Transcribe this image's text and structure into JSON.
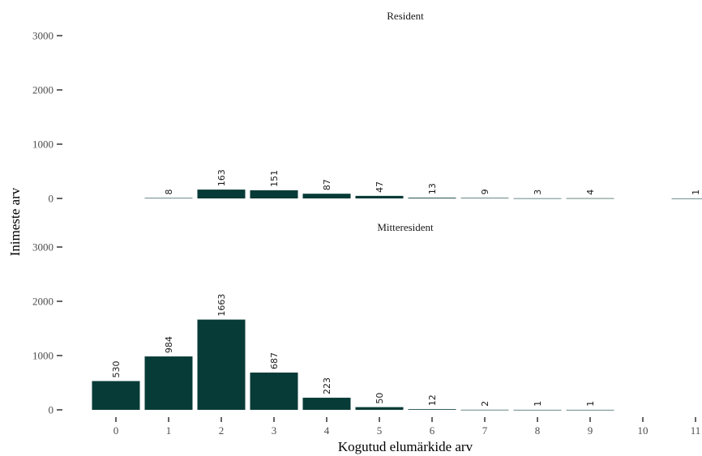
{
  "chart_data": {
    "type": "bar",
    "xlabel": "Kogutud elumärkide arv",
    "ylabel": "Inimeste arv",
    "x_categories": [
      "0",
      "1",
      "2",
      "3",
      "4",
      "5",
      "6",
      "7",
      "8",
      "9",
      "10",
      "11"
    ],
    "y_ticks": [
      0,
      1000,
      2000,
      3000
    ],
    "ylim": [
      0,
      3000
    ],
    "grid": false,
    "bar_color": "#073b37",
    "panels": [
      {
        "title": "Resident",
        "bars": [
          {
            "x": "1",
            "value": 8
          },
          {
            "x": "2",
            "value": 163
          },
          {
            "x": "3",
            "value": 151
          },
          {
            "x": "4",
            "value": 87
          },
          {
            "x": "5",
            "value": 47
          },
          {
            "x": "6",
            "value": 13
          },
          {
            "x": "7",
            "value": 9
          },
          {
            "x": "8",
            "value": 3
          },
          {
            "x": "9",
            "value": 4
          },
          {
            "x": "11",
            "value": 1
          }
        ]
      },
      {
        "title": "Mitteresident",
        "bars": [
          {
            "x": "0",
            "value": 530
          },
          {
            "x": "1",
            "value": 984
          },
          {
            "x": "2",
            "value": 1663
          },
          {
            "x": "3",
            "value": 687
          },
          {
            "x": "4",
            "value": 223
          },
          {
            "x": "5",
            "value": 50
          },
          {
            "x": "6",
            "value": 12
          },
          {
            "x": "7",
            "value": 2
          },
          {
            "x": "8",
            "value": 1
          },
          {
            "x": "9",
            "value": 1
          }
        ]
      }
    ]
  }
}
